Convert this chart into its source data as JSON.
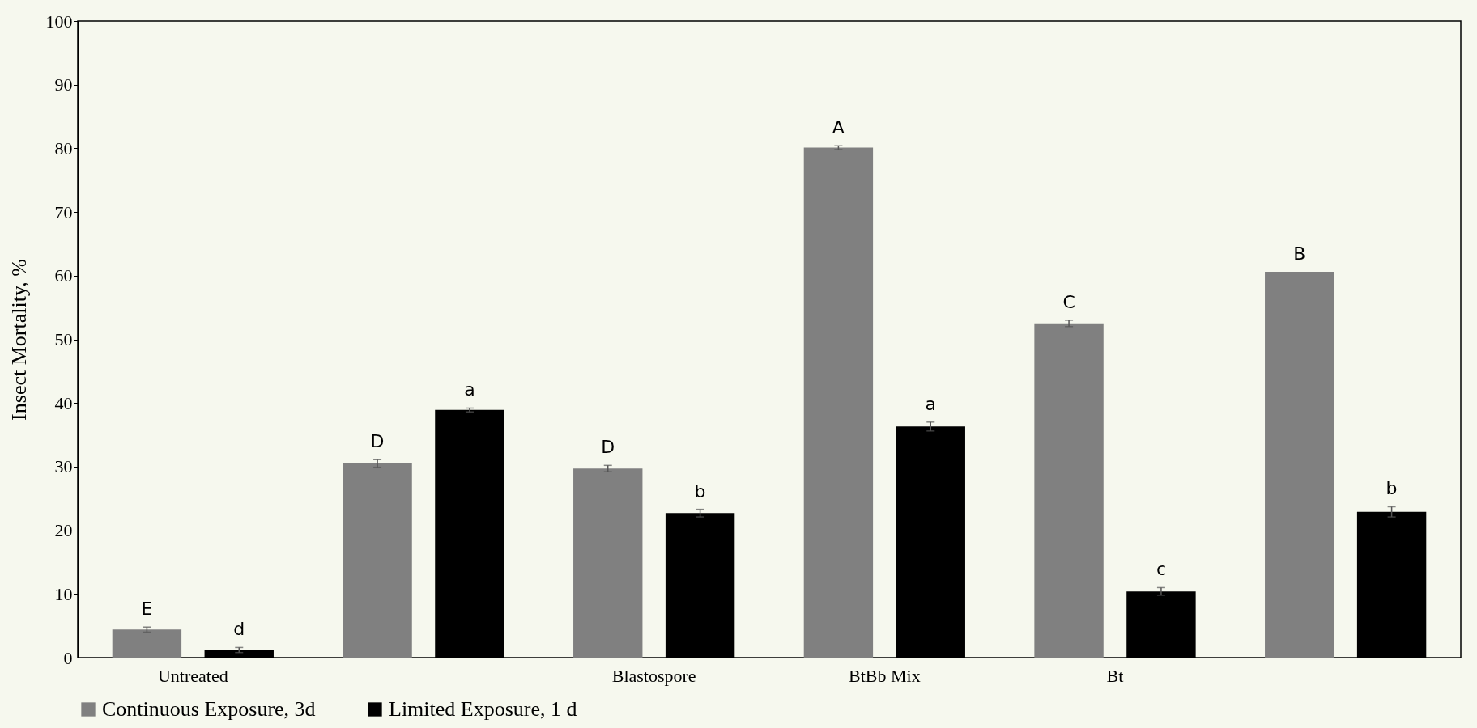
{
  "chart_data": {
    "type": "bar",
    "ylabel": "Insect Mortality,  %",
    "categories": [
      "Untreated",
      null,
      "Blastospore",
      "BtBb Mix",
      "Bt",
      null
    ],
    "series": [
      {
        "name": "Continuous Exposure, 3d",
        "color": "#808080",
        "values": [
          4.4,
          30.5,
          29.7,
          80.1,
          52.5,
          60.6
        ],
        "errors": [
          0.4,
          0.6,
          0.5,
          0.3,
          0.5,
          null
        ],
        "value_labels": [
          "E",
          "D",
          "D",
          "A",
          "C",
          "B"
        ]
      },
      {
        "name": "Limited Exposure, 1 d",
        "color": "#000000",
        "values": [
          1.2,
          38.9,
          22.7,
          36.3,
          10.4,
          22.9
        ],
        "errors": [
          0.4,
          0.3,
          0.6,
          0.7,
          0.6,
          0.8
        ],
        "value_labels": [
          "d",
          "a",
          "b",
          "a",
          "c",
          "b"
        ]
      }
    ],
    "ylim": [
      0,
      100
    ],
    "yticks": [
      0,
      10,
      20,
      30,
      40,
      50,
      60,
      70,
      80,
      90,
      100
    ],
    "grid": false,
    "legend": "bottom"
  }
}
